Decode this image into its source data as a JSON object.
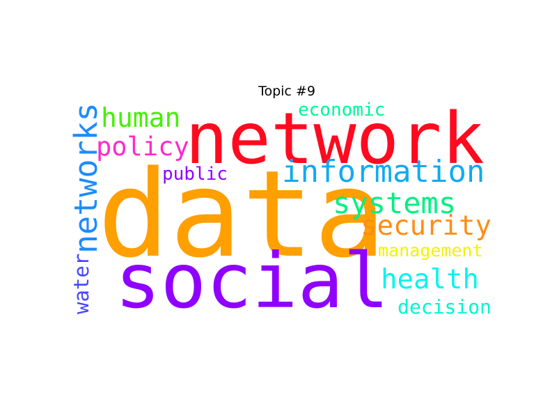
{
  "title": "Topic #9",
  "words": [
    {
      "text": "data",
      "color": "#ff9f00"
    },
    {
      "text": "network",
      "color": "#ff0a1f"
    },
    {
      "text": "social",
      "color": "#9000ff"
    },
    {
      "text": "information",
      "color": "#11aaf0"
    },
    {
      "text": "networks",
      "color": "#1d8cff"
    },
    {
      "text": "systems",
      "color": "#00f080"
    },
    {
      "text": "security",
      "color": "#ff8c15"
    },
    {
      "text": "human",
      "color": "#44f000"
    },
    {
      "text": "policy",
      "color": "#ff2acb"
    },
    {
      "text": "health",
      "color": "#00f5f0"
    },
    {
      "text": "economic",
      "color": "#00f59a"
    },
    {
      "text": "management",
      "color": "#f2f200"
    },
    {
      "text": "public",
      "color": "#9000ff"
    },
    {
      "text": "water",
      "color": "#4646ff"
    },
    {
      "text": "decision",
      "color": "#00f5d2"
    }
  ]
}
